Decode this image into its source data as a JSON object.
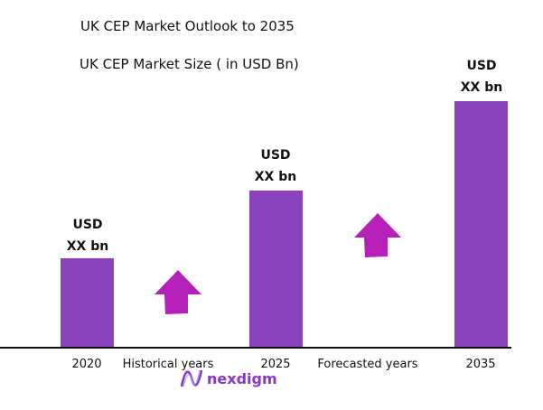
{
  "chart_data": {
    "type": "bar",
    "title": "UK CEP Market Outlook to 2035",
    "subtitle": "UK CEP Market Size ( in USD Bn)",
    "categories": [
      "2020",
      "2025",
      "2035"
    ],
    "data_labels": [
      {
        "line1": "USD",
        "line2": "XX bn"
      },
      {
        "line1": "USD",
        "line2": "XX bn"
      },
      {
        "line1": "USD",
        "line2": "XX bn"
      }
    ],
    "annotations": [
      "Historical years",
      "Forecasted years"
    ],
    "grid": false,
    "colors": {
      "bar": "#8a43bb",
      "arrow": "#b521b8"
    }
  },
  "logo": {
    "text": "nexdigm"
  }
}
